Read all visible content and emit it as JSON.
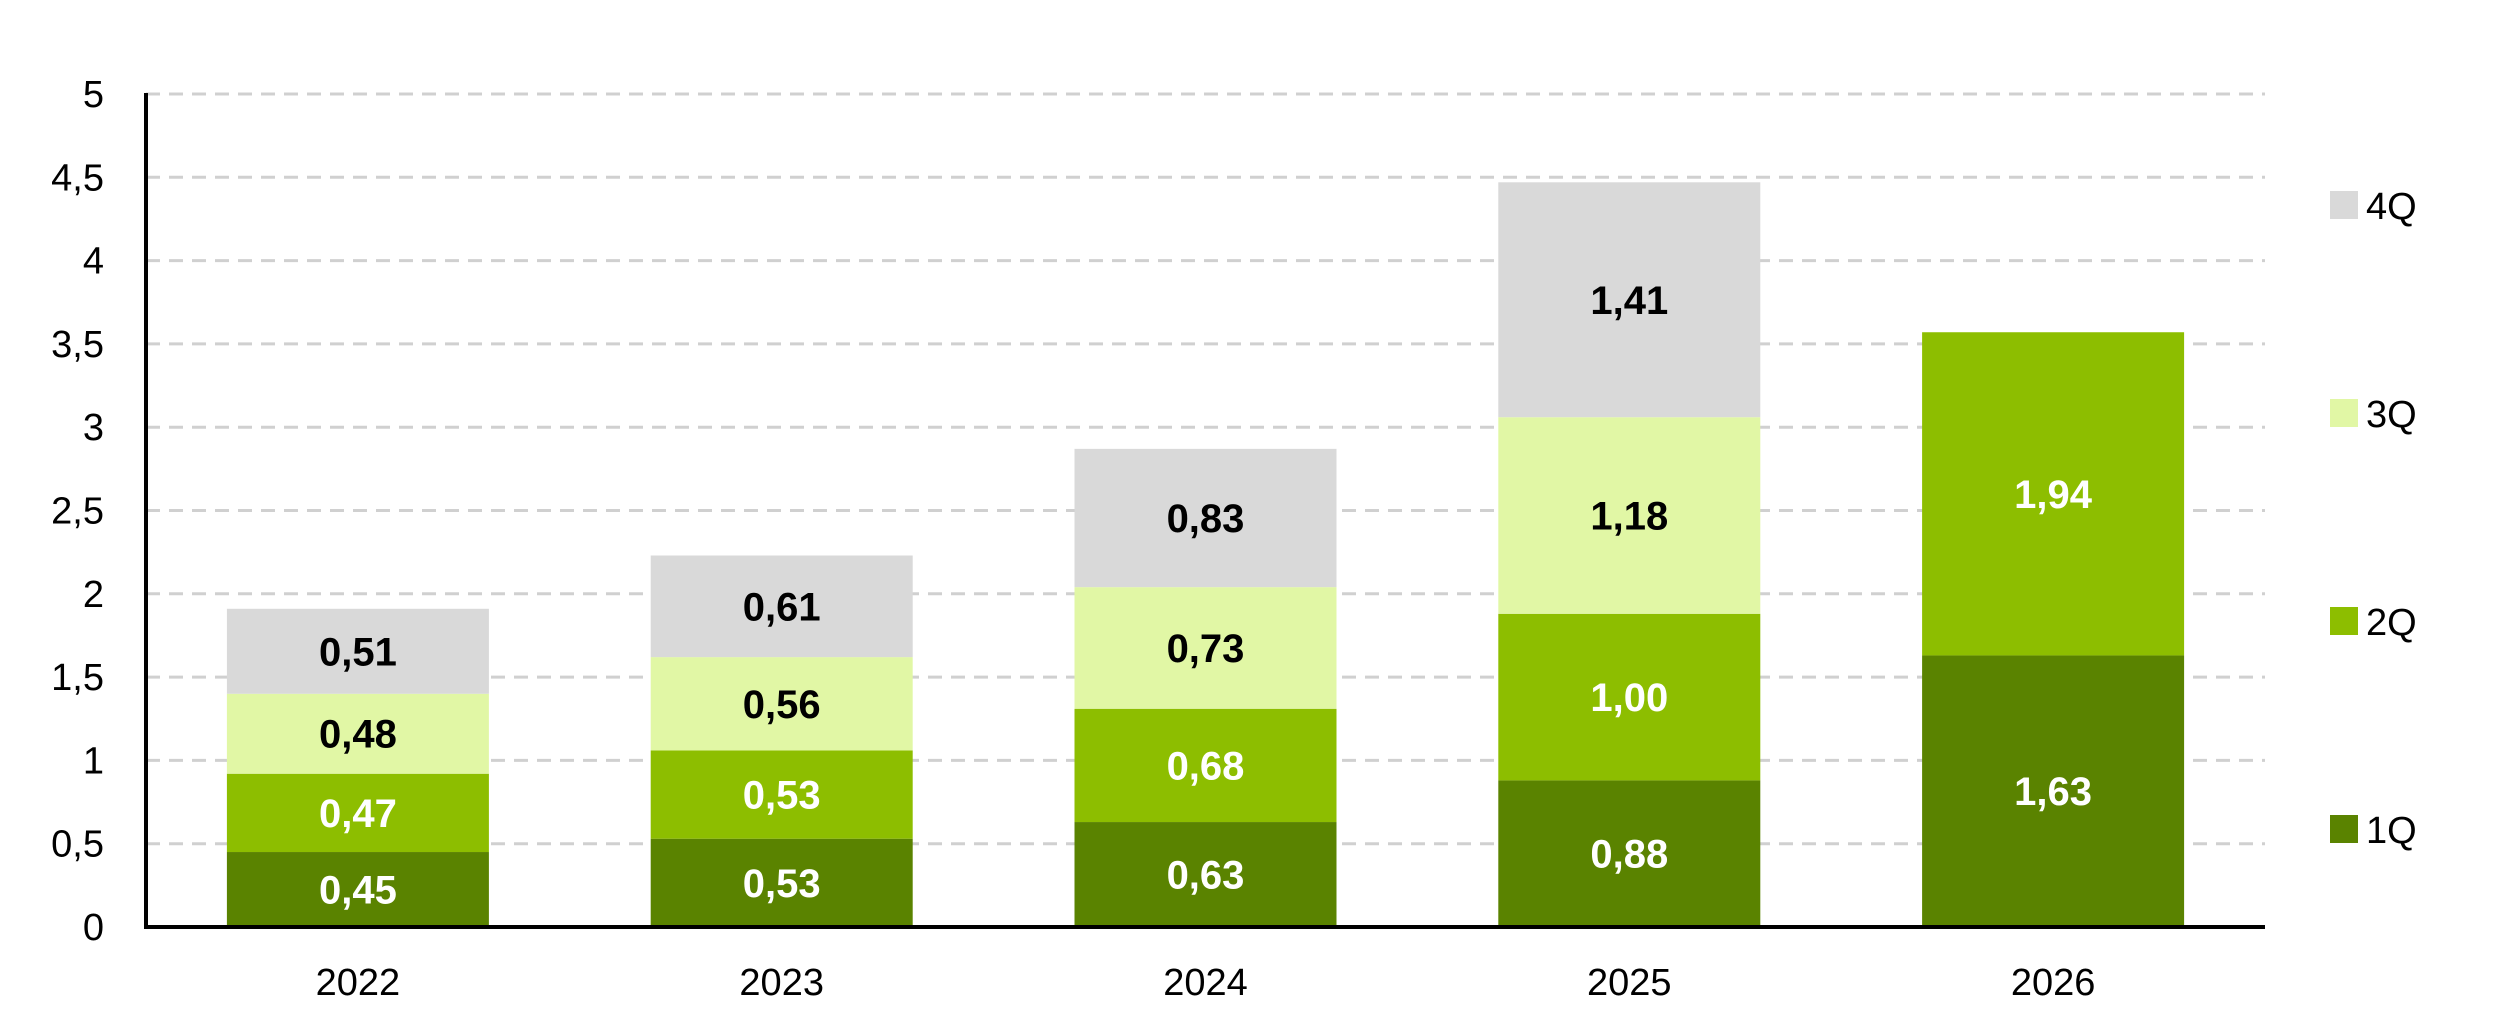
{
  "chart_data": {
    "type": "bar",
    "stacked": true,
    "categories": [
      "2022",
      "2023",
      "2024",
      "2025",
      "2026"
    ],
    "series": [
      {
        "name": "1Q",
        "color": "#5a8300",
        "label_color": "#ffffff",
        "values": [
          0.45,
          0.53,
          0.63,
          0.88,
          1.63
        ],
        "labels": [
          "0,45",
          "0,53",
          "0,63",
          "0,88",
          "1,63"
        ]
      },
      {
        "name": "2Q",
        "color": "#8dbe00",
        "label_color": "#ffffff",
        "values": [
          0.47,
          0.53,
          0.68,
          1.0,
          1.94
        ],
        "labels": [
          "0,47",
          "0,53",
          "0,68",
          "1,00",
          "1,94"
        ]
      },
      {
        "name": "3Q",
        "color": "#e1f7a5",
        "label_color": "#000000",
        "values": [
          0.48,
          0.56,
          0.73,
          1.18,
          null
        ],
        "labels": [
          "0,48",
          "0,56",
          "0,73",
          "1,18",
          ""
        ]
      },
      {
        "name": "4Q",
        "color": "#d9d9d9",
        "label_color": "#000000",
        "values": [
          0.51,
          0.61,
          0.83,
          1.41,
          null
        ],
        "labels": [
          "0,51",
          "0,61",
          "0,83",
          "1,41",
          ""
        ]
      }
    ],
    "ylim": [
      0,
      5
    ],
    "yticks": [
      0,
      0.5,
      1,
      1.5,
      2,
      2.5,
      3,
      3.5,
      4,
      4.5,
      5
    ],
    "ytick_labels": [
      "0",
      "0,5",
      "1",
      "1,5",
      "2",
      "2,5",
      "3",
      "3,5",
      "4",
      "4,5",
      "5"
    ],
    "grid": true,
    "legend": "right"
  }
}
